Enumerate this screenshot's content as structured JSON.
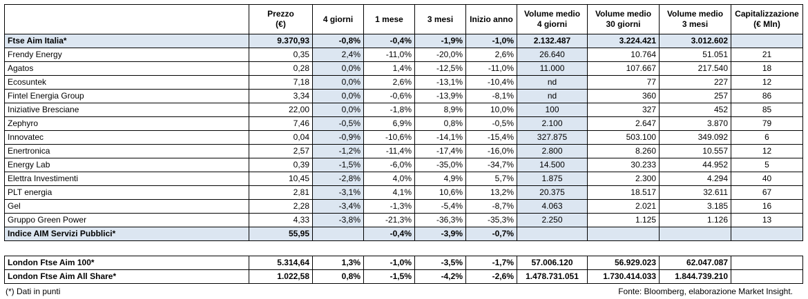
{
  "headers": [
    "",
    "Prezzo\n(€)",
    "4 giorni",
    "1 mese",
    "3 mesi",
    "Inizio anno",
    "Volume medio\n4 giorni",
    "Volume medio\n30 giorni",
    "Volume medio\n3 mesi",
    "Capitalizzazione\n(€ Mln)"
  ],
  "index_row": [
    "Ftse Aim Italia*",
    "9.370,93",
    "-0,8%",
    "-0,4%",
    "-1,9%",
    "-1,0%",
    "2.132.487",
    "3.224.421",
    "3.012.602",
    ""
  ],
  "rows": [
    [
      "Frendy Energy",
      "0,35",
      "2,4%",
      "-11,0%",
      "-20,0%",
      "2,6%",
      "26.640",
      "10.764",
      "51.051",
      "21"
    ],
    [
      "Agatos",
      "0,28",
      "0,0%",
      "1,4%",
      "-12,5%",
      "-11,0%",
      "11.000",
      "107.667",
      "217.540",
      "18"
    ],
    [
      "Ecosuntek",
      "7,18",
      "0,0%",
      "2,6%",
      "-13,1%",
      "-10,4%",
      "nd",
      "77",
      "227",
      "12"
    ],
    [
      "Fintel Energia Group",
      "3,34",
      "0,0%",
      "-0,6%",
      "-13,9%",
      "-8,1%",
      "nd",
      "360",
      "257",
      "86"
    ],
    [
      "Iniziative Bresciane",
      "22,00",
      "0,0%",
      "-1,8%",
      "8,9%",
      "10,0%",
      "100",
      "327",
      "452",
      "85"
    ],
    [
      "Zephyro",
      "7,46",
      "-0,5%",
      "6,9%",
      "0,8%",
      "-0,5%",
      "2.100",
      "2.647",
      "3.870",
      "79"
    ],
    [
      "Innovatec",
      "0,04",
      "-0,9%",
      "-10,6%",
      "-14,1%",
      "-15,4%",
      "327.875",
      "503.100",
      "349.092",
      "6"
    ],
    [
      "Enertronica",
      "2,57",
      "-1,2%",
      "-11,4%",
      "-17,4%",
      "-16,0%",
      "2.800",
      "8.260",
      "10.557",
      "12"
    ],
    [
      "Energy Lab",
      "0,39",
      "-1,5%",
      "-6,0%",
      "-35,0%",
      "-34,7%",
      "14.500",
      "30.233",
      "44.952",
      "5"
    ],
    [
      "Elettra Investimenti",
      "10,45",
      "-2,8%",
      "4,0%",
      "4,9%",
      "5,7%",
      "1.875",
      "2.300",
      "4.294",
      "40"
    ],
    [
      "PLT energia",
      "2,81",
      "-3,1%",
      "4,1%",
      "10,6%",
      "13,2%",
      "20.375",
      "18.517",
      "32.611",
      "67"
    ],
    [
      "Gel",
      "2,28",
      "-3,4%",
      "-1,3%",
      "-5,4%",
      "-8,7%",
      "4.063",
      "2.021",
      "3.185",
      "16"
    ],
    [
      "Gruppo Green Power",
      "4,33",
      "-3,8%",
      "-21,3%",
      "-36,3%",
      "-35,3%",
      "2.250",
      "1.125",
      "1.126",
      "13"
    ]
  ],
  "sector_row": [
    "Indice AIM Servizi Pubblici*",
    "55,95",
    "",
    "-0,4%",
    "-3,9%",
    "-0,7%",
    "",
    "",
    "",
    ""
  ],
  "london_rows": [
    [
      "London Ftse Aim 100*",
      "5.314,64",
      "1,3%",
      "-1,0%",
      "-3,5%",
      "-1,7%",
      "57.006.120",
      "56.929.023",
      "62.047.087",
      ""
    ],
    [
      "London Ftse Aim All Share*",
      "1.022,58",
      "0,8%",
      "-1,5%",
      "-4,2%",
      "-2,6%",
      "1.478.731.051",
      "1.730.414.033",
      "1.844.739.210",
      ""
    ]
  ],
  "footnote": "(*) Dati in punti",
  "source": "Fonte: Bloomberg, elaborazione Market Insight.",
  "colors": {
    "highlight": "#dce6f1",
    "border": "#000000"
  }
}
